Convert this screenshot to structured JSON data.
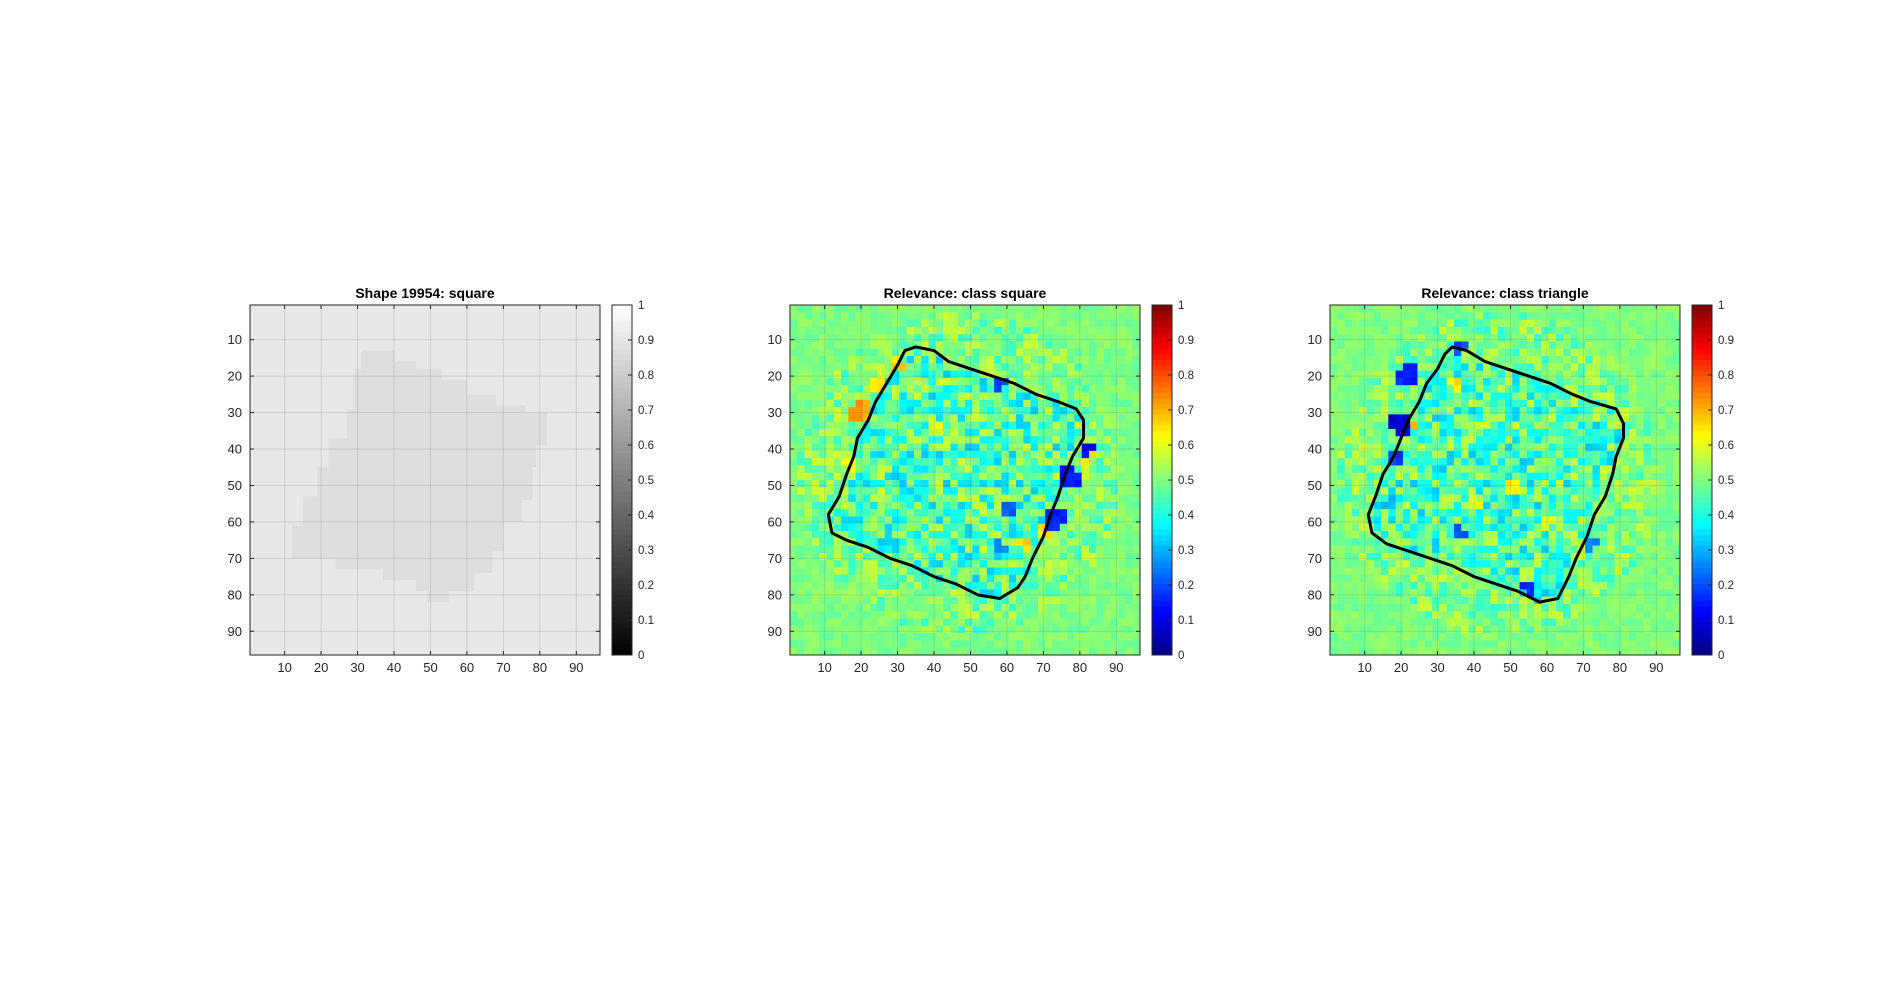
{
  "chart_data": [
    {
      "type": "heatmap",
      "title": "Shape 19954: square",
      "colormap": "gray",
      "clim": [
        0,
        1
      ],
      "xlim": [
        0.5,
        96.5
      ],
      "ylim": [
        0.5,
        96.5
      ],
      "xticks": [
        10,
        20,
        30,
        40,
        50,
        60,
        70,
        80,
        90
      ],
      "yticks": [
        10,
        20,
        30,
        40,
        50,
        60,
        70,
        80,
        90
      ],
      "colorbar_ticks": [
        0,
        0.1,
        0.2,
        0.3,
        0.4,
        0.5,
        0.6,
        0.7,
        0.8,
        0.9,
        1
      ],
      "grid": true,
      "background_value": 0.91,
      "shape_value": 0.87,
      "shape_polygon": [
        [
          31,
          13
        ],
        [
          40,
          13
        ],
        [
          40,
          16
        ],
        [
          46,
          16
        ],
        [
          46,
          18
        ],
        [
          53,
          18
        ],
        [
          53,
          21
        ],
        [
          60,
          21
        ],
        [
          60,
          25
        ],
        [
          68,
          25
        ],
        [
          68,
          28
        ],
        [
          76,
          28
        ],
        [
          76,
          30
        ],
        [
          82,
          30
        ],
        [
          82,
          39
        ],
        [
          79,
          39
        ],
        [
          79,
          45
        ],
        [
          78,
          45
        ],
        [
          78,
          54
        ],
        [
          75,
          54
        ],
        [
          75,
          60
        ],
        [
          70,
          60
        ],
        [
          70,
          68
        ],
        [
          67,
          68
        ],
        [
          67,
          74
        ],
        [
          62,
          74
        ],
        [
          62,
          79
        ],
        [
          55,
          79
        ],
        [
          55,
          82
        ],
        [
          49,
          82
        ],
        [
          49,
          79
        ],
        [
          46,
          79
        ],
        [
          46,
          76
        ],
        [
          37,
          76
        ],
        [
          37,
          73
        ],
        [
          24,
          73
        ],
        [
          24,
          70
        ],
        [
          12,
          70
        ],
        [
          12,
          61
        ],
        [
          15,
          61
        ],
        [
          15,
          53
        ],
        [
          19,
          53
        ],
        [
          19,
          45
        ],
        [
          22,
          45
        ],
        [
          22,
          37
        ],
        [
          27,
          37
        ],
        [
          27,
          29
        ],
        [
          29,
          29
        ],
        [
          29,
          18
        ],
        [
          31,
          18
        ]
      ]
    },
    {
      "type": "heatmap",
      "title": "Relevance: class square",
      "colormap": "jet",
      "clim": [
        0,
        1
      ],
      "xlim": [
        0.5,
        96.5
      ],
      "ylim": [
        0.5,
        96.5
      ],
      "xticks": [
        10,
        20,
        30,
        40,
        50,
        60,
        70,
        80,
        90
      ],
      "yticks": [
        10,
        20,
        30,
        40,
        50,
        60,
        70,
        80,
        90
      ],
      "colorbar_ticks": [
        0,
        0.1,
        0.2,
        0.3,
        0.4,
        0.5,
        0.6,
        0.7,
        0.8,
        0.9,
        1
      ],
      "grid": true,
      "background_value": 0.5,
      "cell_size": 2,
      "outline": [
        [
          35,
          12
        ],
        [
          40,
          13
        ],
        [
          44,
          16
        ],
        [
          50,
          18
        ],
        [
          56,
          20
        ],
        [
          62,
          22
        ],
        [
          68,
          25
        ],
        [
          74,
          27
        ],
        [
          79,
          29
        ],
        [
          81,
          32
        ],
        [
          81,
          37
        ],
        [
          78,
          42
        ],
        [
          76,
          47
        ],
        [
          74,
          53
        ],
        [
          72,
          58
        ],
        [
          70,
          64
        ],
        [
          67,
          70
        ],
        [
          65,
          75
        ],
        [
          63,
          78
        ],
        [
          58,
          81
        ],
        [
          52,
          80
        ],
        [
          46,
          77
        ],
        [
          40,
          75
        ],
        [
          34,
          72
        ],
        [
          28,
          70
        ],
        [
          22,
          67
        ],
        [
          16,
          65
        ],
        [
          12,
          63
        ],
        [
          11,
          58
        ],
        [
          14,
          53
        ],
        [
          16,
          47
        ],
        [
          18,
          42
        ],
        [
          19,
          37
        ],
        [
          22,
          32
        ],
        [
          24,
          27
        ],
        [
          27,
          22
        ],
        [
          30,
          17
        ],
        [
          32,
          13
        ],
        [
          35,
          12
        ]
      ],
      "hot_spots": [
        {
          "x": 20,
          "y": 30,
          "v": 0.72,
          "r": 3
        },
        {
          "x": 24,
          "y": 22,
          "v": 0.65,
          "r": 2.5
        },
        {
          "x": 30,
          "y": 17,
          "v": 0.66,
          "r": 2
        },
        {
          "x": 70,
          "y": 63,
          "v": 0.64,
          "r": 2
        },
        {
          "x": 65,
          "y": 66,
          "v": 0.66,
          "r": 2
        },
        {
          "x": 82,
          "y": 42,
          "v": 0.66,
          "r": 2
        },
        {
          "x": 40,
          "y": 33,
          "v": 0.6,
          "r": 2
        },
        {
          "x": 17,
          "y": 44,
          "v": 0.62,
          "r": 2
        },
        {
          "x": 77,
          "y": 48,
          "v": 0.14,
          "r": 3
        },
        {
          "x": 73,
          "y": 59,
          "v": 0.16,
          "r": 3
        },
        {
          "x": 82,
          "y": 40,
          "v": 0.12,
          "r": 2
        },
        {
          "x": 58,
          "y": 22,
          "v": 0.2,
          "r": 2
        },
        {
          "x": 60,
          "y": 57,
          "v": 0.22,
          "r": 2.5
        },
        {
          "x": 58,
          "y": 67,
          "v": 0.26,
          "r": 2
        }
      ]
    },
    {
      "type": "heatmap",
      "title": "Relevance: class triangle",
      "colormap": "jet",
      "clim": [
        0,
        1
      ],
      "xlim": [
        0.5,
        96.5
      ],
      "ylim": [
        0.5,
        96.5
      ],
      "xticks": [
        10,
        20,
        30,
        40,
        50,
        60,
        70,
        80,
        90
      ],
      "yticks": [
        10,
        20,
        30,
        40,
        50,
        60,
        70,
        80,
        90
      ],
      "colorbar_ticks": [
        0,
        0.1,
        0.2,
        0.3,
        0.4,
        0.5,
        0.6,
        0.7,
        0.8,
        0.9,
        1
      ],
      "grid": true,
      "background_value": 0.5,
      "cell_size": 2,
      "outline": [
        [
          34,
          12
        ],
        [
          38,
          13
        ],
        [
          43,
          16
        ],
        [
          49,
          18
        ],
        [
          55,
          20
        ],
        [
          61,
          22
        ],
        [
          67,
          25
        ],
        [
          72,
          27
        ],
        [
          79,
          29
        ],
        [
          81,
          33
        ],
        [
          81,
          37
        ],
        [
          79,
          42
        ],
        [
          78,
          47
        ],
        [
          76,
          53
        ],
        [
          73,
          58
        ],
        [
          71,
          64
        ],
        [
          68,
          70
        ],
        [
          66,
          75
        ],
        [
          63,
          81
        ],
        [
          58,
          82
        ],
        [
          52,
          79
        ],
        [
          46,
          77
        ],
        [
          40,
          75
        ],
        [
          34,
          72
        ],
        [
          28,
          70
        ],
        [
          22,
          68
        ],
        [
          16,
          66
        ],
        [
          12,
          63
        ],
        [
          11,
          58
        ],
        [
          13,
          53
        ],
        [
          15,
          47
        ],
        [
          18,
          42
        ],
        [
          20,
          37
        ],
        [
          22,
          32
        ],
        [
          25,
          27
        ],
        [
          27,
          22
        ],
        [
          30,
          18
        ],
        [
          32,
          14
        ],
        [
          34,
          12
        ]
      ],
      "hot_spots": [
        {
          "x": 20,
          "y": 33,
          "v": 0.08,
          "r": 3
        },
        {
          "x": 22,
          "y": 20,
          "v": 0.16,
          "r": 3
        },
        {
          "x": 19,
          "y": 42,
          "v": 0.18,
          "r": 2.5
        },
        {
          "x": 17,
          "y": 55,
          "v": 0.3,
          "r": 2
        },
        {
          "x": 36,
          "y": 12,
          "v": 0.2,
          "r": 2
        },
        {
          "x": 55,
          "y": 78,
          "v": 0.14,
          "r": 2
        },
        {
          "x": 36,
          "y": 63,
          "v": 0.2,
          "r": 2
        },
        {
          "x": 72,
          "y": 66,
          "v": 0.26,
          "r": 2
        },
        {
          "x": 24,
          "y": 34,
          "v": 0.7,
          "r": 1.5
        },
        {
          "x": 35,
          "y": 22,
          "v": 0.64,
          "r": 2
        },
        {
          "x": 50,
          "y": 50,
          "v": 0.63,
          "r": 2.5
        },
        {
          "x": 60,
          "y": 60,
          "v": 0.62,
          "r": 2
        },
        {
          "x": 40,
          "y": 55,
          "v": 0.6,
          "r": 2
        }
      ]
    }
  ]
}
